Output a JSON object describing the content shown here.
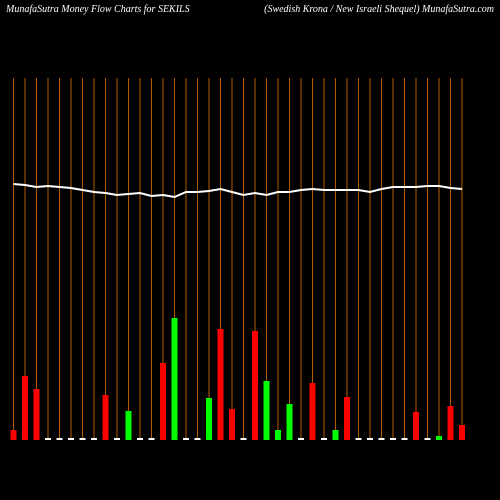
{
  "chart_data": {
    "type": "money-flow",
    "title": "MunafaSutra  Money Flow  Charts for SEKILS",
    "subtitle": "(Swedish Krona  / New Israeli  Shequel) MunafaSutra.com",
    "bar_values": [
      10,
      64,
      51,
      2,
      2,
      2,
      2,
      2,
      45,
      2,
      29,
      2,
      2,
      77,
      122,
      2,
      2,
      42,
      111,
      31,
      2,
      109,
      59,
      10,
      36,
      2,
      57,
      2,
      10,
      43,
      2,
      2,
      2,
      2,
      2,
      28,
      2,
      4,
      34,
      15
    ],
    "bar_colors": [
      "#ff0000",
      "#ff0000",
      "#ff0000",
      "#ffffff",
      "#ffffff",
      "#ffffff",
      "#ffffff",
      "#ffffff",
      "#ff0000",
      "#ffffff",
      "#00ff00",
      "#ffffff",
      "#ffffff",
      "#ff0000",
      "#00ff00",
      "#ffffff",
      "#ffffff",
      "#00ff00",
      "#ff0000",
      "#ff0000",
      "#ffffff",
      "#ff0000",
      "#00ff00",
      "#00ff00",
      "#00ff00",
      "#ffffff",
      "#ff0000",
      "#ffffff",
      "#00ff00",
      "#ff0000",
      "#ffffff",
      "#ffffff",
      "#ffffff",
      "#ffffff",
      "#ffffff",
      "#ff0000",
      "#ffffff",
      "#00ff00",
      "#ff0000",
      "#ff0000"
    ],
    "line_values": [
      256,
      255,
      253,
      254,
      253,
      252,
      250,
      248,
      247,
      245,
      246,
      247,
      244,
      245,
      243,
      248,
      248,
      249,
      251,
      248,
      245,
      247,
      245,
      248,
      248,
      250,
      251,
      250,
      250,
      250,
      250,
      248,
      251,
      253,
      253,
      253,
      254,
      254,
      252,
      251
    ],
    "line_color": "#ffffff",
    "grid_color": "#b35900"
  }
}
